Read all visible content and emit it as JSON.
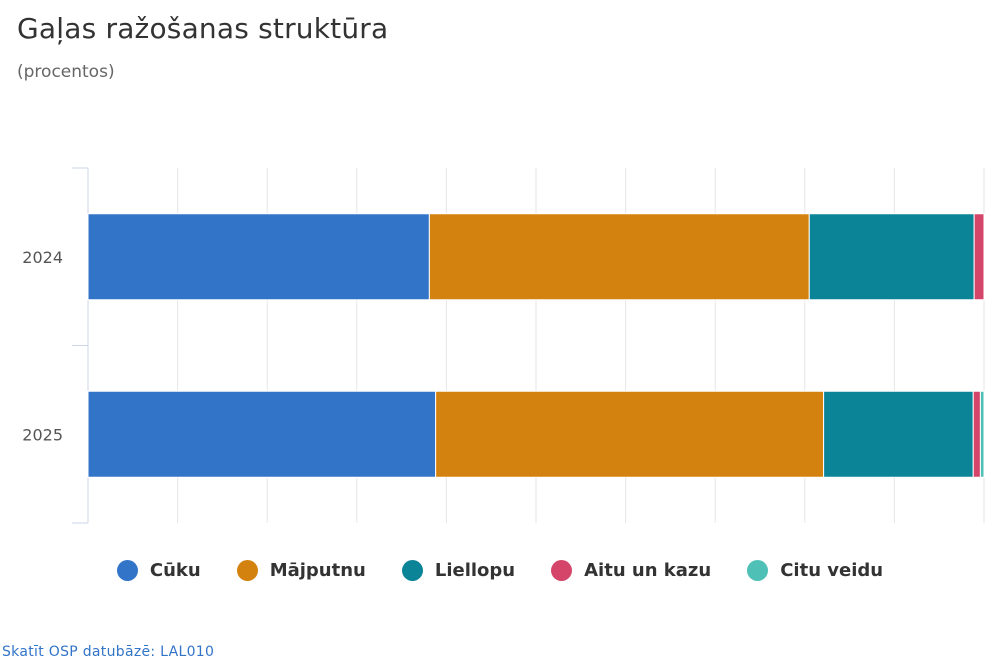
{
  "chart_data": {
    "type": "bar",
    "orientation": "horizontal",
    "stacked": true,
    "title": "Gaļas ražošanas struktūra",
    "subtitle": "(procentos)",
    "categories": [
      "2024",
      "2025"
    ],
    "xlim": [
      0,
      100
    ],
    "grid": true,
    "legend_position": "bottom",
    "series": [
      {
        "name": "Cūku",
        "color": "#3274c8",
        "values": [
          38.1,
          38.8
        ]
      },
      {
        "name": "Mājputnu",
        "color": "#d4820f",
        "values": [
          42.4,
          43.3
        ]
      },
      {
        "name": "Liellopu",
        "color": "#0b8497",
        "values": [
          18.4,
          16.7
        ]
      },
      {
        "name": "Aitu un kazu",
        "color": "#d44569",
        "values": [
          1.1,
          0.8
        ]
      },
      {
        "name": "Citu veidu",
        "color": "#4fc0b5",
        "values": [
          0.0,
          0.4
        ]
      }
    ]
  },
  "source": {
    "label": "Skatīt OSP datubāzē: LAL010"
  }
}
